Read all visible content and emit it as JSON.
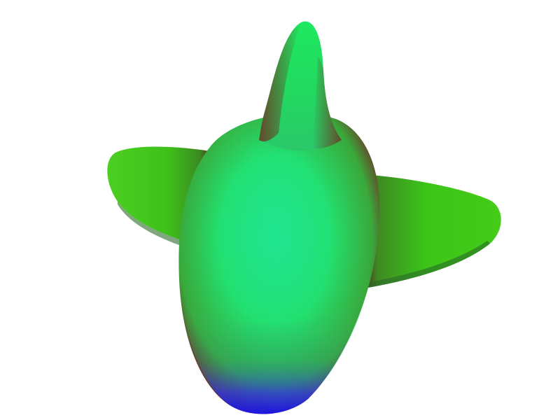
{
  "scene": {
    "background_color": "#ffffff",
    "colors": {
      "wing_main": "#3ec81a",
      "wing_tip": "#52d62a",
      "wing_root_shadow": "#5a2a1e",
      "body_center": "#1fe87c",
      "body_light": "#2cf08a",
      "body_edge": "#6a2a28",
      "nose_blue": "#1a1aff",
      "nose_purple": "#5a2a8a",
      "fin_top": "#22e066",
      "fin_base": "#6a3a22"
    }
  }
}
